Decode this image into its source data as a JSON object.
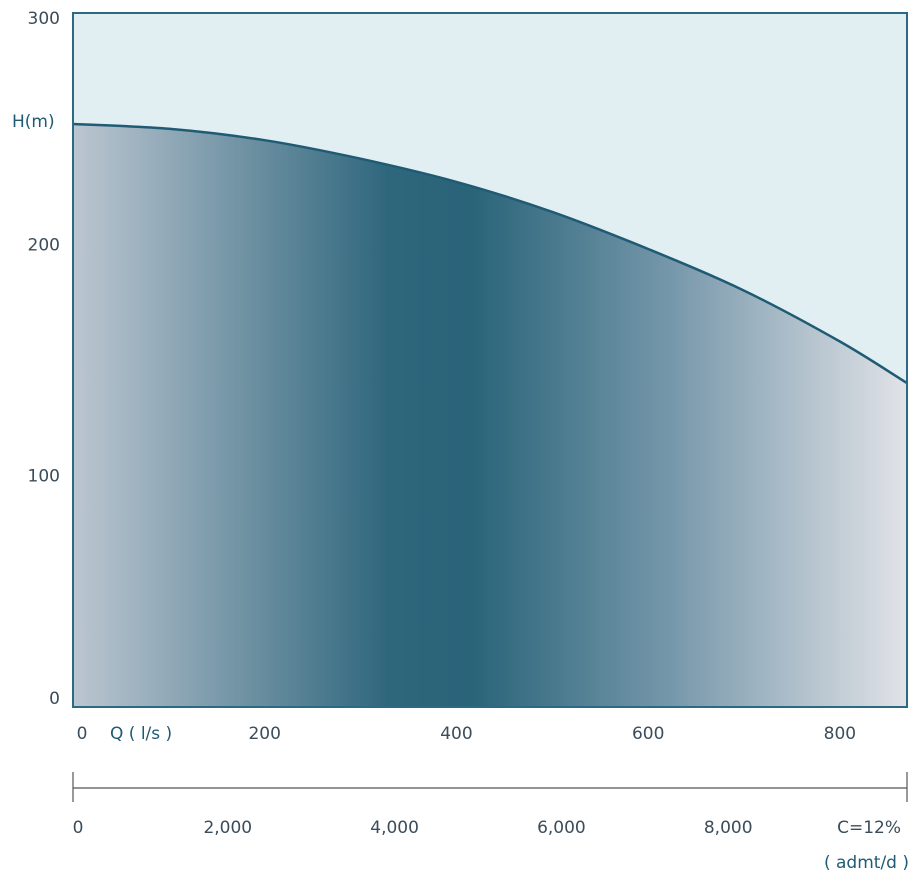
{
  "chart_data": {
    "type": "area",
    "title": "",
    "ylabel": "H(m)",
    "xlabel": "Q ( l/s )",
    "secondary_xlabel_top": "C=12%",
    "secondary_xlabel_bottom": "( admt/d )",
    "ylim": [
      0,
      300
    ],
    "xlim": [
      0,
      870
    ],
    "y_ticks": [
      {
        "value": 0,
        "label": "0"
      },
      {
        "value": 100,
        "label": "100"
      },
      {
        "value": 200,
        "label": "200"
      },
      {
        "value": 300,
        "label": "300"
      }
    ],
    "x_ticks": [
      {
        "value": 0,
        "label": "0"
      },
      {
        "value": 200,
        "label": "200"
      },
      {
        "value": 400,
        "label": "400"
      },
      {
        "value": 600,
        "label": "600"
      },
      {
        "value": 800,
        "label": "800"
      }
    ],
    "secondary_x_ticks": [
      {
        "value": 0,
        "label": "0"
      },
      {
        "value": 2000,
        "label": "2,000"
      },
      {
        "value": 4000,
        "label": "4,000"
      },
      {
        "value": 6000,
        "label": "6,000"
      },
      {
        "value": 8000,
        "label": "8,000"
      }
    ],
    "secondary_xlim": [
      0,
      10000
    ],
    "series": [
      {
        "x": [
          0,
          100,
          200,
          300,
          400,
          500,
          600,
          700,
          800,
          870
        ],
        "y": [
          252,
          250,
          245,
          237,
          227,
          214,
          198,
          180,
          158,
          140
        ]
      }
    ],
    "grid": false,
    "colors": {
      "plot_background": "#e2eff2",
      "frame": "#2b6a82",
      "curve": "#1f5b74",
      "fill_dark": "#2a6479",
      "fill_light": "#e1e3e7"
    }
  }
}
